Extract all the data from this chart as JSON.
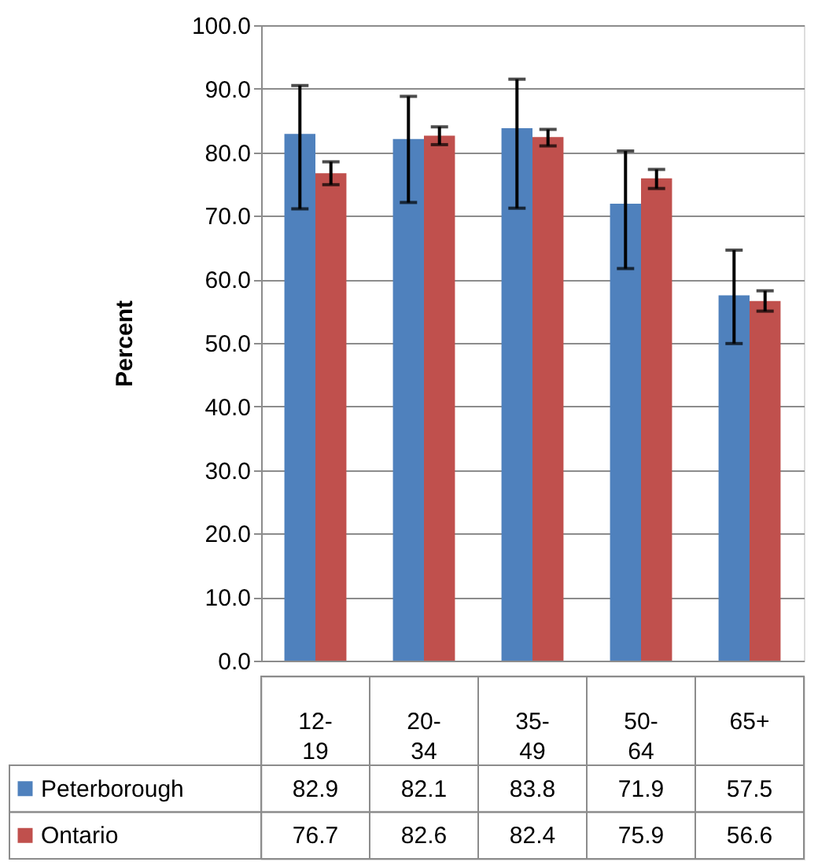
{
  "chart_data": {
    "type": "bar",
    "ylabel": "Percent",
    "categories": [
      "12-19",
      "20-34",
      "35-49",
      "50-64",
      "65+"
    ],
    "series": [
      {
        "name": "Peterborough",
        "color": "#4f81bd",
        "values": [
          82.9,
          82.1,
          83.8,
          71.9,
          57.5
        ],
        "errors": [
          [
            71.1,
            90.5
          ],
          [
            72.1,
            88.8
          ],
          [
            71.2,
            91.5
          ],
          [
            61.7,
            80.2
          ],
          [
            49.9,
            64.6
          ]
        ]
      },
      {
        "name": "Ontario",
        "color": "#c0504d",
        "values": [
          76.7,
          82.6,
          82.4,
          75.9,
          56.6
        ],
        "errors": [
          [
            74.9,
            78.5
          ],
          [
            81.2,
            84.0
          ],
          [
            81.0,
            83.6
          ],
          [
            74.3,
            77.3
          ],
          [
            55.0,
            58.2
          ]
        ]
      }
    ],
    "ylim": [
      0,
      100
    ],
    "yticks": [
      {
        "value": 0,
        "label": "0.0"
      },
      {
        "value": 10,
        "label": "10.0"
      },
      {
        "value": 20,
        "label": "20.0"
      },
      {
        "value": 30,
        "label": "30.0"
      },
      {
        "value": 40,
        "label": "40.0"
      },
      {
        "value": 50,
        "label": "50.0"
      },
      {
        "value": 60,
        "label": "60.0"
      },
      {
        "value": 70,
        "label": "70.0"
      },
      {
        "value": 80,
        "label": "80.0"
      },
      {
        "value": 90,
        "label": "90.0"
      },
      {
        "value": 100,
        "label": "100.0"
      }
    ],
    "grid": "y",
    "legend": "bottom",
    "data_labels": true
  }
}
